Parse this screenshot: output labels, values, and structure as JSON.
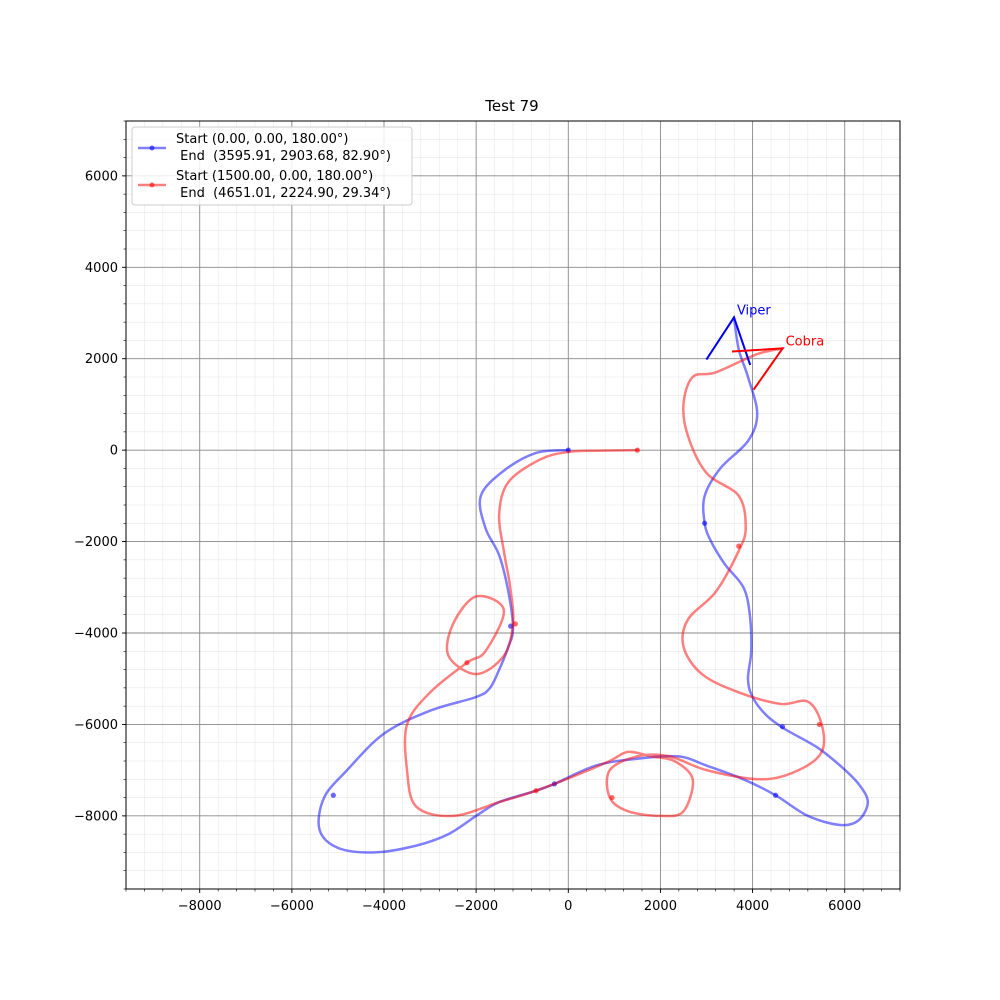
{
  "chart_data": {
    "type": "line",
    "title": "Test 79",
    "xlabel": "",
    "ylabel": "",
    "xlim": [
      -9600,
      7200
    ],
    "ylim": [
      -9600,
      7200
    ],
    "x_ticks": [
      -8000,
      -6000,
      -4000,
      -2000,
      0,
      2000,
      4000,
      6000
    ],
    "y_ticks": [
      -8000,
      -6000,
      -4000,
      -2000,
      0,
      2000,
      4000,
      6000
    ],
    "x_tick_labels": [
      "−8000",
      "−6000",
      "−4000",
      "−2000",
      "0",
      "2000",
      "4000",
      "6000"
    ],
    "y_tick_labels": [
      "−8000",
      "−6000",
      "−4000",
      "−2000",
      "0",
      "2000",
      "4000",
      "6000"
    ],
    "grid": true,
    "legend_position": "top-left",
    "series": [
      {
        "name": "Start (0.00, 0.00, 180.00°)\n End  (3595.91, 2903.68, 82.90°)",
        "legend_line1": "Start (0.00, 0.00, 180.00°)",
        "legend_line2": " End  (3595.91, 2903.68, 82.90°)",
        "color": "#0000ff",
        "end_label": "Viper",
        "points": [
          [
            0,
            0
          ],
          [
            -700,
            -60
          ],
          [
            -1400,
            -450
          ],
          [
            -1900,
            -1000
          ],
          [
            -1800,
            -1700
          ],
          [
            -1500,
            -2300
          ],
          [
            -1300,
            -3100
          ],
          [
            -1200,
            -3900
          ],
          [
            -1300,
            -4300
          ],
          [
            -1500,
            -4800
          ],
          [
            -1700,
            -5200
          ],
          [
            -2000,
            -5400
          ],
          [
            -3000,
            -5700
          ],
          [
            -4000,
            -6200
          ],
          [
            -4800,
            -7000
          ],
          [
            -5300,
            -7600
          ],
          [
            -5400,
            -8300
          ],
          [
            -5000,
            -8700
          ],
          [
            -4200,
            -8800
          ],
          [
            -3300,
            -8650
          ],
          [
            -2600,
            -8400
          ],
          [
            -2000,
            -8000
          ],
          [
            -1500,
            -7700
          ],
          [
            -700,
            -7450
          ],
          [
            -300,
            -7300
          ],
          [
            600,
            -6900
          ],
          [
            1500,
            -6750
          ],
          [
            2400,
            -6700
          ],
          [
            3000,
            -6900
          ],
          [
            3800,
            -7200
          ],
          [
            4500,
            -7550
          ],
          [
            5200,
            -8000
          ],
          [
            5900,
            -8200
          ],
          [
            6300,
            -8100
          ],
          [
            6500,
            -7700
          ],
          [
            6300,
            -7300
          ],
          [
            5900,
            -6900
          ],
          [
            5400,
            -6500
          ],
          [
            4700,
            -6100
          ],
          [
            4300,
            -5800
          ],
          [
            4000,
            -5400
          ],
          [
            3900,
            -5000
          ],
          [
            3970,
            -4400
          ],
          [
            3940,
            -3600
          ],
          [
            3800,
            -3000
          ],
          [
            3400,
            -2500
          ],
          [
            3100,
            -2000
          ],
          [
            2960,
            -1600
          ],
          [
            2960,
            -1000
          ],
          [
            3300,
            -400
          ],
          [
            3900,
            200
          ],
          [
            4100,
            800
          ],
          [
            3900,
            1600
          ],
          [
            3700,
            2200
          ],
          [
            3596,
            2904
          ]
        ],
        "markers": [
          [
            0,
            0
          ],
          [
            -1250,
            -3850
          ],
          [
            -5100,
            -7550
          ],
          [
            -300,
            -7300
          ],
          [
            4500,
            -7550
          ],
          [
            4650,
            -6050
          ],
          [
            2960,
            -1600
          ]
        ]
      },
      {
        "name": "Start (1500.00, 0.00, 180.00°)\n End  (4651.01, 2224.90, 29.34°)",
        "legend_line1": "Start (1500.00, 0.00, 180.00°)",
        "legend_line2": " End  (4651.01, 2224.90, 29.34°)",
        "color": "#ff0000",
        "end_label": "Cobra",
        "points": [
          [
            1500,
            0
          ],
          [
            700,
            -10
          ],
          [
            0,
            -40
          ],
          [
            -600,
            -200
          ],
          [
            -1300,
            -700
          ],
          [
            -1500,
            -1400
          ],
          [
            -1400,
            -2200
          ],
          [
            -1260,
            -3000
          ],
          [
            -1200,
            -3800
          ],
          [
            -1400,
            -4500
          ],
          [
            -2000,
            -4900
          ],
          [
            -2600,
            -4500
          ],
          [
            -2500,
            -3800
          ],
          [
            -2000,
            -3200
          ],
          [
            -1400,
            -3500
          ],
          [
            -1800,
            -4400
          ],
          [
            -2200,
            -4650
          ],
          [
            -3000,
            -5300
          ],
          [
            -3500,
            -6000
          ],
          [
            -3500,
            -7000
          ],
          [
            -3300,
            -7800
          ],
          [
            -2500,
            -8000
          ],
          [
            -1500,
            -7700
          ],
          [
            -700,
            -7450
          ],
          [
            200,
            -7100
          ],
          [
            900,
            -6800
          ],
          [
            1300,
            -6600
          ],
          [
            1800,
            -6700
          ],
          [
            2300,
            -6800
          ],
          [
            2700,
            -7200
          ],
          [
            2500,
            -7900
          ],
          [
            2000,
            -8000
          ],
          [
            1300,
            -7900
          ],
          [
            900,
            -7600
          ],
          [
            900,
            -7000
          ],
          [
            1500,
            -6700
          ],
          [
            2200,
            -6700
          ],
          [
            3000,
            -7000
          ],
          [
            4200,
            -7200
          ],
          [
            5000,
            -7000
          ],
          [
            5500,
            -6600
          ],
          [
            5500,
            -6000
          ],
          [
            5200,
            -5500
          ],
          [
            4600,
            -5550
          ],
          [
            3700,
            -5300
          ],
          [
            2900,
            -4900
          ],
          [
            2500,
            -4300
          ],
          [
            2600,
            -3700
          ],
          [
            3200,
            -3100
          ],
          [
            3700,
            -2200
          ],
          [
            3850,
            -1700
          ],
          [
            3700,
            -1000
          ],
          [
            3000,
            -500
          ],
          [
            2600,
            300
          ],
          [
            2500,
            1000
          ],
          [
            2700,
            1600
          ],
          [
            3200,
            1700
          ],
          [
            4100,
            2100
          ],
          [
            4651,
            2225
          ]
        ],
        "markers": [
          [
            1500,
            0
          ],
          [
            -1150,
            -3800
          ],
          [
            -2200,
            -4650
          ],
          [
            -700,
            -7450
          ],
          [
            950,
            -7600
          ],
          [
            3700,
            -2100
          ],
          [
            5450,
            -6000
          ]
        ]
      }
    ]
  }
}
